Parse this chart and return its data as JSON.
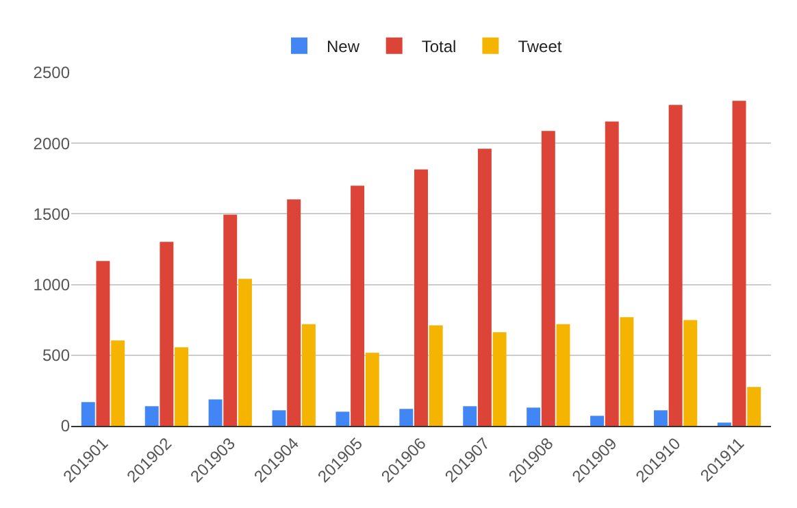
{
  "chart_data": {
    "type": "bar",
    "categories": [
      "201901",
      "201902",
      "201903",
      "201904",
      "201905",
      "201906",
      "201907",
      "201908",
      "201909",
      "201910",
      "201911"
    ],
    "series": [
      {
        "name": "New",
        "color": "#4285f4",
        "values": [
          168,
          139,
          187,
          110,
          100,
          120,
          139,
          129,
          71,
          110,
          23
        ]
      },
      {
        "name": "Total",
        "color": "#db4437",
        "values": [
          1166,
          1302,
          1495,
          1602,
          1699,
          1815,
          1961,
          2087,
          2154,
          2271,
          2300
        ]
      },
      {
        "name": "Tweet",
        "color": "#f4b400",
        "values": [
          604,
          556,
          1040,
          720,
          517,
          711,
          662,
          720,
          769,
          749,
          275
        ]
      }
    ],
    "ylim": [
      0,
      2500
    ],
    "yticks": [
      0,
      500,
      1000,
      1500,
      2000,
      2500
    ],
    "grid": "y",
    "legend": "top"
  }
}
